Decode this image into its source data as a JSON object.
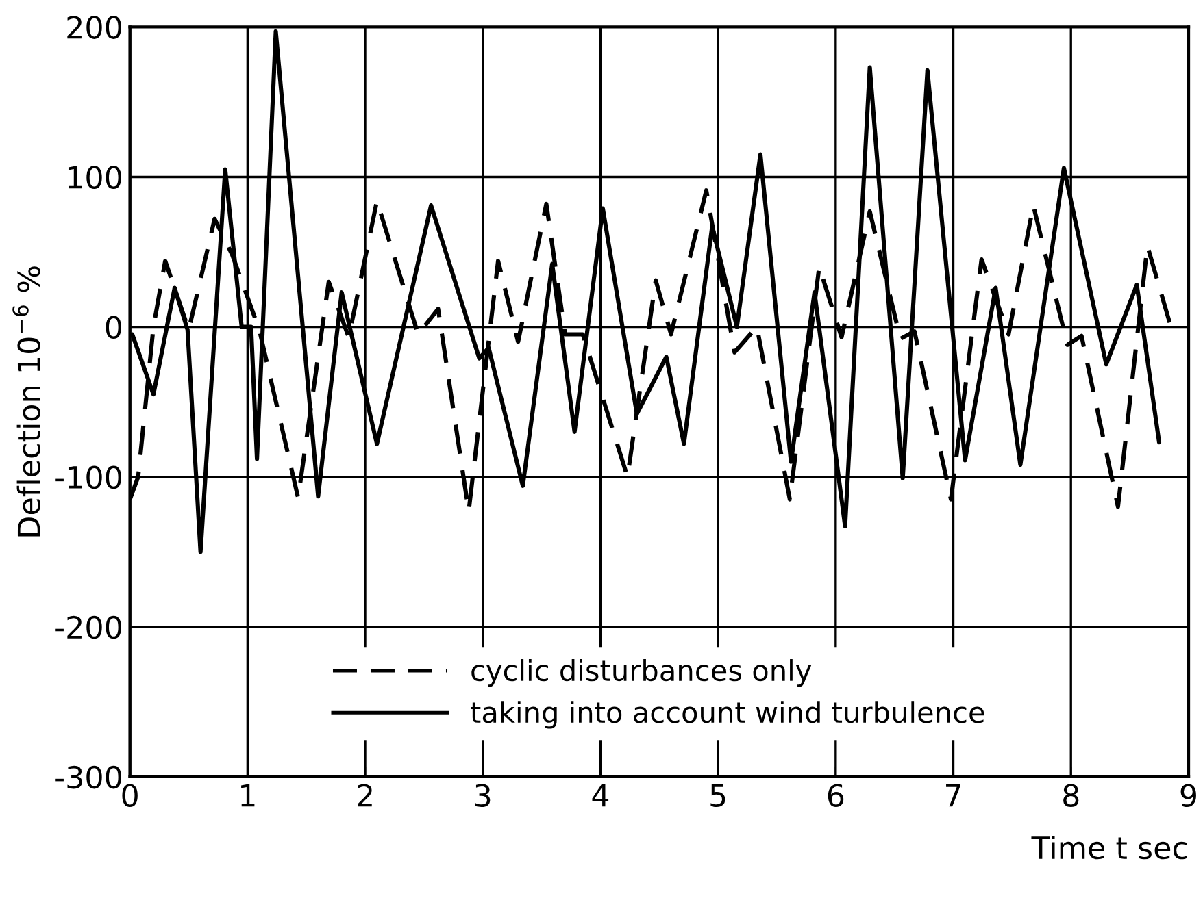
{
  "chart_data": {
    "type": "line",
    "xlabel": "Time t sec",
    "ylabel": "Deflection 10$^{−6}$ %",
    "xlim": [
      0,
      9
    ],
    "ylim": [
      -300,
      200
    ],
    "xticks": [
      0,
      1,
      2,
      3,
      4,
      5,
      6,
      7,
      8,
      9
    ],
    "yticks": [
      -300,
      -200,
      -100,
      0,
      100,
      200
    ],
    "grid": true,
    "legend": "bottom",
    "marker": "none",
    "series": [
      {
        "name": "cyclic disturbances only",
        "color": "#000000",
        "line_style": "dashed",
        "x": [
          0,
          0.07,
          0.2,
          0.3,
          0.5,
          0.72,
          0.87,
          1.1,
          1.43,
          1.69,
          1.86,
          2.1,
          2.45,
          2.62,
          2.88,
          3.13,
          3.3,
          3.54,
          3.7,
          3.85,
          4.23,
          4.47,
          4.6,
          4.9,
          5.14,
          5.33,
          5.61,
          5.86,
          6.05,
          6.29,
          6.55,
          6.67,
          6.98,
          7.24,
          7.47,
          7.68,
          7.97,
          8.09,
          8.4,
          8.65,
          8.85
        ],
        "values": [
          -115,
          -100,
          0,
          44,
          -2,
          72,
          48,
          -2,
          -114,
          30,
          -7,
          84,
          -5,
          12,
          -123,
          44,
          -10,
          82,
          -5,
          -5,
          -100,
          31,
          -5,
          91,
          -17,
          0,
          -115,
          40,
          -7,
          77,
          -8,
          -3,
          -115,
          45,
          -5,
          81,
          -12,
          -6,
          -120,
          54,
          0
        ]
      },
      {
        "name": "taking into account wind turbulence",
        "color": "#000000",
        "line_style": "solid",
        "x": [
          0.02,
          0.2,
          0.38,
          0.49,
          0.6,
          0.81,
          0.95,
          1.03,
          1.08,
          1.24,
          1.6,
          1.8,
          2.1,
          2.56,
          2.97,
          3.05,
          3.34,
          3.59,
          3.78,
          4.02,
          4.31,
          4.56,
          4.71,
          4.95,
          5.16,
          5.36,
          5.62,
          5.82,
          6.08,
          6.29,
          6.57,
          6.78,
          7.1,
          7.36,
          7.57,
          7.94,
          8.3,
          8.56,
          8.75
        ],
        "values": [
          -5,
          -45,
          26,
          -2,
          -150,
          105,
          0,
          0,
          -88,
          197,
          -113,
          23,
          -78,
          81,
          -21,
          -14,
          -106,
          42,
          -70,
          79,
          -58,
          -20,
          -78,
          67,
          0,
          115,
          -90,
          23,
          -133,
          173,
          -101,
          171,
          -89,
          26,
          -92,
          106,
          -25,
          28,
          -77
        ]
      }
    ]
  }
}
